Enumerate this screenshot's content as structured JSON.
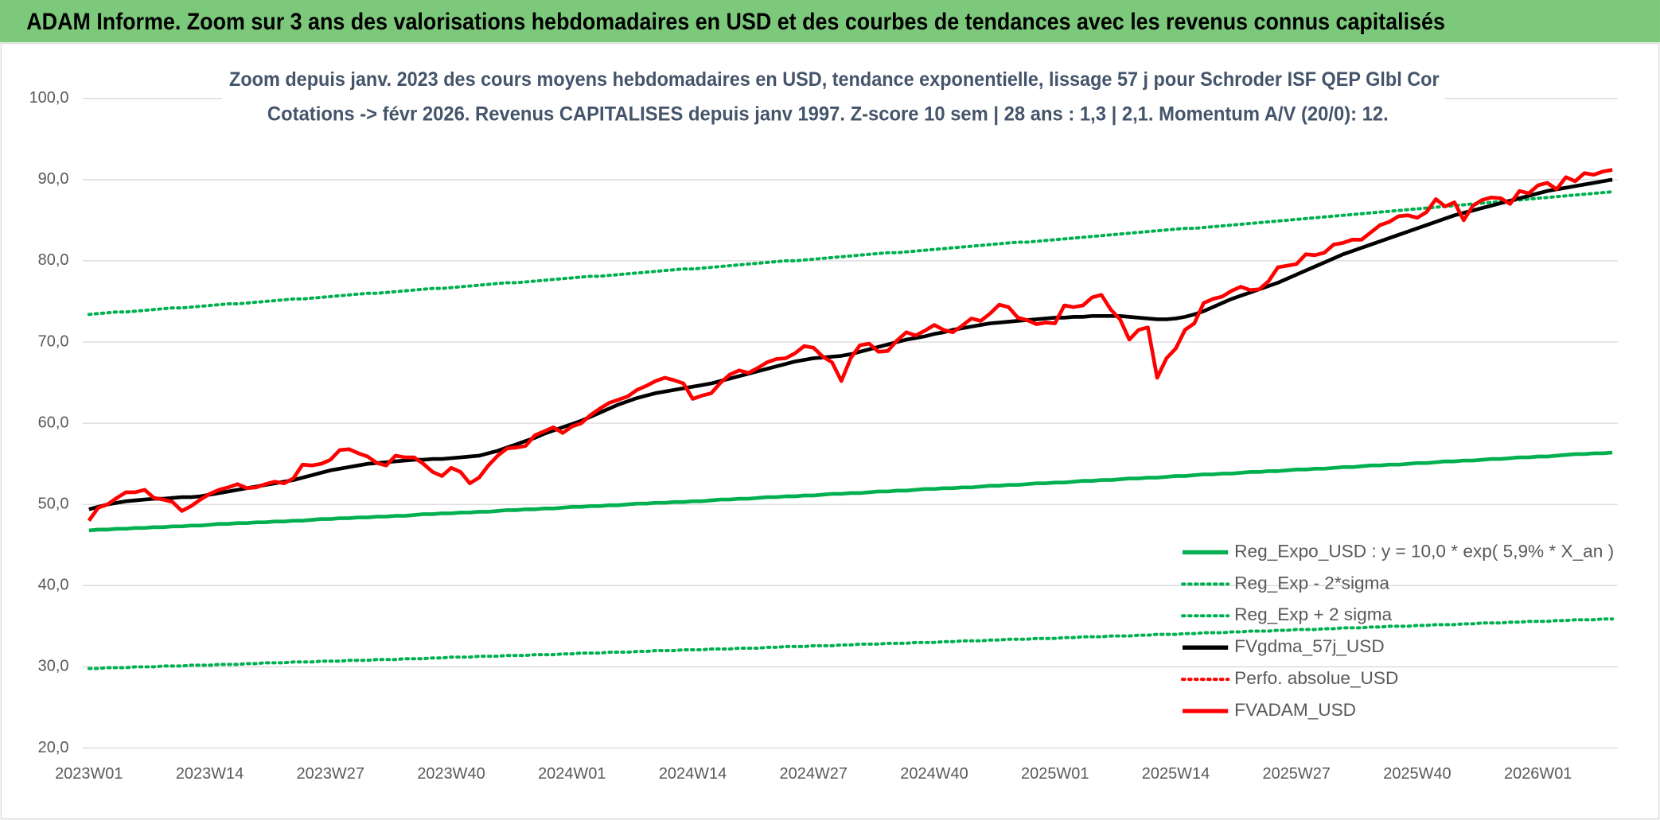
{
  "chart_data": {
    "type": "line",
    "header": "ADAM Informe. Zoom sur 3 ans des valorisations hebdomadaires en USD et des courbes de tendances avec les revenus connus capitalisés",
    "title": "Zoom depuis janv. 2023 des cours moyens hebdomadaires en USD, tendance exponentielle, lissage 57 j pour Schroder ISF QEP Glbl Cor",
    "subtitle": "Cotations -> févr 2026. Revenus CAPITALISES depuis janv 1997. Z-score 10 sem | 28 ans : 1,3 | 2,1. Momentum A/V (20/0): 12.",
    "categories": [
      "2023W01",
      null,
      null,
      null,
      null,
      null,
      null,
      null,
      null,
      null,
      null,
      null,
      null,
      "2023W14",
      null,
      null,
      null,
      null,
      null,
      null,
      null,
      null,
      null,
      null,
      null,
      null,
      "2023W27",
      null,
      null,
      null,
      null,
      null,
      null,
      null,
      null,
      null,
      null,
      null,
      null,
      "2023W40",
      null,
      null,
      null,
      null,
      null,
      null,
      null,
      null,
      null,
      null,
      null,
      null,
      "2024W01",
      null,
      null,
      null,
      null,
      null,
      null,
      null,
      null,
      null,
      null,
      null,
      null,
      "2024W14",
      null,
      null,
      null,
      null,
      null,
      null,
      null,
      null,
      null,
      null,
      null,
      null,
      "2024W27",
      null,
      null,
      null,
      null,
      null,
      null,
      null,
      null,
      null,
      null,
      null,
      null,
      "2024W40",
      null,
      null,
      null,
      null,
      null,
      null,
      null,
      null,
      null,
      null,
      null,
      null,
      "2025W01",
      null,
      null,
      null,
      null,
      null,
      null,
      null,
      null,
      null,
      null,
      null,
      null,
      "2025W14",
      null,
      null,
      null,
      null,
      null,
      null,
      null,
      null,
      null,
      null,
      null,
      null,
      "2025W27",
      null,
      null,
      null,
      null,
      null,
      null,
      null,
      null,
      null,
      null,
      null,
      null,
      "2025W40",
      null,
      null,
      null,
      null,
      null,
      null,
      null,
      null,
      null,
      null,
      null,
      null,
      "2026W01",
      null,
      null,
      null,
      null,
      null,
      null,
      null,
      null
    ],
    "ylim": [
      20,
      100
    ],
    "yticks": [
      {
        "value": 20,
        "label": "20,0"
      },
      {
        "value": 30,
        "label": "30,0"
      },
      {
        "value": 40,
        "label": "40,0"
      },
      {
        "value": 50,
        "label": "50,0"
      },
      {
        "value": 60,
        "label": "60,0"
      },
      {
        "value": 70,
        "label": "70,0"
      },
      {
        "value": 80,
        "label": "80,0"
      },
      {
        "value": 90,
        "label": "90,0"
      },
      {
        "value": 100,
        "label": "100,0"
      }
    ],
    "grid": true,
    "legend": "right",
    "series": [
      {
        "name": "Reg_Expo_USD : y = 10,0 * exp( 5,9% *  X_an )",
        "color": "#00b050",
        "dash": "solid",
        "values": [
          46.8,
          46.9,
          46.9,
          47.0,
          47.0,
          47.1,
          47.1,
          47.2,
          47.2,
          47.3,
          47.3,
          47.4,
          47.4,
          47.5,
          47.6,
          47.6,
          47.7,
          47.7,
          47.8,
          47.8,
          47.9,
          47.9,
          48.0,
          48.0,
          48.1,
          48.2,
          48.2,
          48.3,
          48.3,
          48.4,
          48.4,
          48.5,
          48.5,
          48.6,
          48.6,
          48.7,
          48.8,
          48.8,
          48.9,
          48.9,
          49.0,
          49.0,
          49.1,
          49.1,
          49.2,
          49.3,
          49.3,
          49.4,
          49.4,
          49.5,
          49.5,
          49.6,
          49.7,
          49.7,
          49.8,
          49.8,
          49.9,
          49.9,
          50.0,
          50.1,
          50.1,
          50.2,
          50.2,
          50.3,
          50.3,
          50.4,
          50.4,
          50.5,
          50.6,
          50.6,
          50.7,
          50.7,
          50.8,
          50.9,
          50.9,
          51.0,
          51.0,
          51.1,
          51.1,
          51.2,
          51.3,
          51.3,
          51.4,
          51.4,
          51.5,
          51.6,
          51.6,
          51.7,
          51.7,
          51.8,
          51.9,
          51.9,
          52.0,
          52.0,
          52.1,
          52.1,
          52.2,
          52.3,
          52.3,
          52.4,
          52.4,
          52.5,
          52.6,
          52.6,
          52.7,
          52.7,
          52.8,
          52.9,
          52.9,
          53.0,
          53.0,
          53.1,
          53.2,
          53.2,
          53.3,
          53.3,
          53.4,
          53.5,
          53.5,
          53.6,
          53.7,
          53.7,
          53.8,
          53.8,
          53.9,
          54.0,
          54.0,
          54.1,
          54.1,
          54.2,
          54.3,
          54.3,
          54.4,
          54.4,
          54.5,
          54.6,
          54.6,
          54.7,
          54.8,
          54.8,
          54.9,
          54.9,
          55.0,
          55.1,
          55.1,
          55.2,
          55.3,
          55.3,
          55.4,
          55.4,
          55.5,
          55.6,
          55.6,
          55.7,
          55.8,
          55.8,
          55.9,
          55.9,
          56.0,
          56.1,
          56.2,
          56.2,
          56.3,
          56.3,
          56.4
        ]
      },
      {
        "name": "Reg_Exp - 2*sigma",
        "color": "#00b050",
        "dash": "dotted",
        "values": [
          29.8,
          29.8,
          29.9,
          29.9,
          29.9,
          30.0,
          30.0,
          30.0,
          30.1,
          30.1,
          30.1,
          30.2,
          30.2,
          30.2,
          30.3,
          30.3,
          30.3,
          30.4,
          30.4,
          30.5,
          30.5,
          30.5,
          30.6,
          30.6,
          30.6,
          30.7,
          30.7,
          30.7,
          30.8,
          30.8,
          30.8,
          30.9,
          30.9,
          30.9,
          31.0,
          31.0,
          31.0,
          31.1,
          31.1,
          31.2,
          31.2,
          31.2,
          31.3,
          31.3,
          31.3,
          31.4,
          31.4,
          31.4,
          31.5,
          31.5,
          31.5,
          31.6,
          31.6,
          31.7,
          31.7,
          31.7,
          31.8,
          31.8,
          31.8,
          31.9,
          31.9,
          32.0,
          32.0,
          32.0,
          32.1,
          32.1,
          32.1,
          32.2,
          32.2,
          32.2,
          32.3,
          32.3,
          32.3,
          32.4,
          32.4,
          32.5,
          32.5,
          32.5,
          32.6,
          32.6,
          32.6,
          32.7,
          32.7,
          32.8,
          32.8,
          32.8,
          32.9,
          32.9,
          32.9,
          33.0,
          33.0,
          33.0,
          33.1,
          33.1,
          33.2,
          33.2,
          33.2,
          33.3,
          33.3,
          33.4,
          33.4,
          33.4,
          33.5,
          33.5,
          33.5,
          33.6,
          33.6,
          33.7,
          33.7,
          33.7,
          33.8,
          33.8,
          33.8,
          33.9,
          33.9,
          34.0,
          34.0,
          34.0,
          34.1,
          34.1,
          34.2,
          34.2,
          34.2,
          34.3,
          34.3,
          34.4,
          34.4,
          34.4,
          34.5,
          34.5,
          34.6,
          34.6,
          34.6,
          34.7,
          34.7,
          34.8,
          34.8,
          34.8,
          34.9,
          34.9,
          35.0,
          35.0,
          35.0,
          35.1,
          35.1,
          35.2,
          35.2,
          35.2,
          35.3,
          35.3,
          35.4,
          35.4,
          35.4,
          35.5,
          35.5,
          35.6,
          35.6,
          35.6,
          35.7,
          35.7,
          35.8,
          35.8,
          35.8,
          35.9,
          35.9
        ]
      },
      {
        "name": "Reg_Exp + 2 sigma",
        "color": "#00b050",
        "dash": "dotted",
        "values": [
          73.4,
          73.5,
          73.6,
          73.7,
          73.7,
          73.8,
          73.9,
          74.0,
          74.1,
          74.2,
          74.2,
          74.3,
          74.4,
          74.5,
          74.6,
          74.7,
          74.7,
          74.8,
          74.9,
          75.0,
          75.1,
          75.2,
          75.3,
          75.3,
          75.4,
          75.5,
          75.6,
          75.7,
          75.8,
          75.9,
          76.0,
          76.0,
          76.1,
          76.2,
          76.3,
          76.4,
          76.5,
          76.6,
          76.6,
          76.7,
          76.8,
          76.9,
          77.0,
          77.1,
          77.2,
          77.3,
          77.3,
          77.4,
          77.5,
          77.6,
          77.7,
          77.8,
          77.9,
          78.0,
          78.1,
          78.1,
          78.2,
          78.3,
          78.4,
          78.5,
          78.6,
          78.7,
          78.8,
          78.9,
          79.0,
          79.0,
          79.1,
          79.2,
          79.3,
          79.4,
          79.5,
          79.6,
          79.7,
          79.8,
          79.9,
          80.0,
          80.0,
          80.1,
          80.2,
          80.3,
          80.4,
          80.5,
          80.6,
          80.7,
          80.8,
          80.9,
          81.0,
          81.0,
          81.1,
          81.2,
          81.3,
          81.4,
          81.5,
          81.6,
          81.7,
          81.8,
          81.9,
          82.0,
          82.1,
          82.2,
          82.3,
          82.3,
          82.4,
          82.5,
          82.6,
          82.7,
          82.8,
          82.9,
          83.0,
          83.1,
          83.2,
          83.3,
          83.4,
          83.5,
          83.6,
          83.7,
          83.8,
          83.9,
          84.0,
          84.0,
          84.1,
          84.2,
          84.3,
          84.4,
          84.5,
          84.6,
          84.7,
          84.8,
          84.9,
          85.0,
          85.1,
          85.2,
          85.3,
          85.4,
          85.5,
          85.6,
          85.7,
          85.8,
          85.9,
          86.0,
          86.1,
          86.2,
          86.3,
          86.4,
          86.5,
          86.6,
          86.7,
          86.8,
          86.9,
          87.0,
          87.1,
          87.2,
          87.3,
          87.4,
          87.5,
          87.6,
          87.7,
          87.8,
          87.9,
          88.0,
          88.1,
          88.2,
          88.3,
          88.4,
          88.5
        ]
      },
      {
        "name": "FVgdma_57j_USD",
        "color": "#000000",
        "dash": "solid",
        "values": [
          49.4,
          49.7,
          50.0,
          50.2,
          50.4,
          50.5,
          50.6,
          50.7,
          50.7,
          50.8,
          50.9,
          50.9,
          51.0,
          51.2,
          51.4,
          51.6,
          51.8,
          52.0,
          52.2,
          52.4,
          52.6,
          52.8,
          53.0,
          53.3,
          53.6,
          53.9,
          54.2,
          54.4,
          54.6,
          54.8,
          55.0,
          55.1,
          55.2,
          55.3,
          55.4,
          55.5,
          55.5,
          55.6,
          55.6,
          55.7,
          55.8,
          55.9,
          56.0,
          56.3,
          56.6,
          57.0,
          57.4,
          57.8,
          58.2,
          58.7,
          59.1,
          59.5,
          59.9,
          60.3,
          60.8,
          61.3,
          61.8,
          62.3,
          62.7,
          63.1,
          63.4,
          63.7,
          63.9,
          64.1,
          64.3,
          64.5,
          64.7,
          64.9,
          65.2,
          65.5,
          65.8,
          66.1,
          66.4,
          66.7,
          67.0,
          67.3,
          67.6,
          67.8,
          68.0,
          68.1,
          68.2,
          68.3,
          68.5,
          68.8,
          69.1,
          69.4,
          69.7,
          70.0,
          70.3,
          70.5,
          70.7,
          71.0,
          71.2,
          71.5,
          71.7,
          71.9,
          72.1,
          72.3,
          72.4,
          72.5,
          72.6,
          72.7,
          72.8,
          72.9,
          73.0,
          73.0,
          73.1,
          73.1,
          73.2,
          73.2,
          73.2,
          73.2,
          73.1,
          73.0,
          72.9,
          72.8,
          72.8,
          72.9,
          73.1,
          73.4,
          73.8,
          74.3,
          74.8,
          75.3,
          75.7,
          76.1,
          76.5,
          76.9,
          77.3,
          77.8,
          78.3,
          78.8,
          79.3,
          79.8,
          80.3,
          80.8,
          81.2,
          81.6,
          82.0,
          82.4,
          82.8,
          83.2,
          83.6,
          84.0,
          84.4,
          84.8,
          85.2,
          85.6,
          85.9,
          86.2,
          86.5,
          86.8,
          87.1,
          87.4,
          87.7,
          88.0,
          88.3,
          88.6,
          88.8,
          89.0,
          89.2,
          89.4,
          89.6,
          89.8,
          90.0
        ]
      },
      {
        "name": "Perfo. absolue_USD",
        "color": "#ff0000",
        "dash": "dotted",
        "values": [
          null,
          null,
          null,
          null,
          null,
          null,
          null,
          null,
          null,
          null,
          null,
          null,
          null,
          null,
          null,
          null,
          null,
          null,
          null,
          null,
          null,
          null,
          null,
          null,
          null,
          null,
          null,
          null,
          null,
          null,
          null,
          null,
          null,
          null,
          null,
          null,
          null,
          null,
          null,
          null,
          null,
          null,
          null,
          null,
          null,
          null,
          null,
          null,
          null,
          null,
          null,
          null,
          null,
          null,
          null,
          null,
          null,
          null,
          null,
          null,
          null,
          null,
          null,
          null,
          null,
          null,
          null,
          null,
          null,
          null,
          null,
          null,
          null,
          null,
          null,
          null,
          null,
          null,
          null,
          null,
          null,
          null,
          null,
          null,
          null,
          null,
          null,
          null,
          null,
          null,
          null,
          null,
          null,
          null,
          null,
          null,
          null,
          null,
          null,
          null,
          null,
          null,
          null,
          null,
          null,
          null,
          null,
          null,
          null,
          null,
          null,
          null,
          null,
          null,
          null,
          null,
          null,
          null,
          null,
          null,
          null,
          null,
          null,
          null,
          null,
          null,
          null,
          null,
          null,
          null,
          null,
          null,
          null,
          null,
          null,
          null,
          null,
          null,
          null,
          null,
          null,
          null,
          null,
          null,
          null,
          null,
          null,
          null,
          null,
          null,
          null,
          null,
          null,
          null,
          null,
          null,
          null,
          null,
          null,
          null,
          null,
          null,
          null,
          null,
          null
        ]
      },
      {
        "name": "FVADAM_USD",
        "color": "#ff0000",
        "dash": "solid",
        "values": [
          48.0,
          49.6,
          50.0,
          50.8,
          51.5,
          51.5,
          51.8,
          50.8,
          50.6,
          50.3,
          49.2,
          49.8,
          50.6,
          51.3,
          51.8,
          52.1,
          52.5,
          52.0,
          52.1,
          52.5,
          52.8,
          52.6,
          53.2,
          54.9,
          54.8,
          55.0,
          55.5,
          56.7,
          56.8,
          56.3,
          55.9,
          55.1,
          54.8,
          56.0,
          55.8,
          55.8,
          55.0,
          54.0,
          53.5,
          54.5,
          54.0,
          52.6,
          53.3,
          54.8,
          56.0,
          56.9,
          57.0,
          57.2,
          58.5,
          59.0,
          59.5,
          58.8,
          59.6,
          60.0,
          61.0,
          61.8,
          62.5,
          62.9,
          63.3,
          64.1,
          64.6,
          65.2,
          65.6,
          65.3,
          64.9,
          63.0,
          63.4,
          63.7,
          65.0,
          66.0,
          66.5,
          66.2,
          66.8,
          67.5,
          67.9,
          68.0,
          68.6,
          69.5,
          69.3,
          68.2,
          67.5,
          65.2,
          68.0,
          69.6,
          69.8,
          68.8,
          68.9,
          70.2,
          71.2,
          70.8,
          71.4,
          72.1,
          71.5,
          71.2,
          72.0,
          72.9,
          72.6,
          73.5,
          74.6,
          74.3,
          73.0,
          72.7,
          72.2,
          72.4,
          72.3,
          74.5,
          74.3,
          74.5,
          75.5,
          75.8,
          74.0,
          72.8,
          70.3,
          71.5,
          71.8,
          65.6,
          68.0,
          69.2,
          71.5,
          72.3,
          74.8,
          75.3,
          75.6,
          76.3,
          76.8,
          76.4,
          76.5,
          77.5,
          79.2,
          79.4,
          79.6,
          80.8,
          80.7,
          81.0,
          82.0,
          82.2,
          82.6,
          82.6,
          83.5,
          84.4,
          84.8,
          85.5,
          85.6,
          85.3,
          86.0,
          87.6,
          86.7,
          87.2,
          85.0,
          86.8,
          87.5,
          87.8,
          87.7,
          87.0,
          88.6,
          88.3,
          89.3,
          89.6,
          88.8,
          90.3,
          89.8,
          90.8,
          90.6,
          91.0,
          91.2
        ]
      }
    ]
  }
}
